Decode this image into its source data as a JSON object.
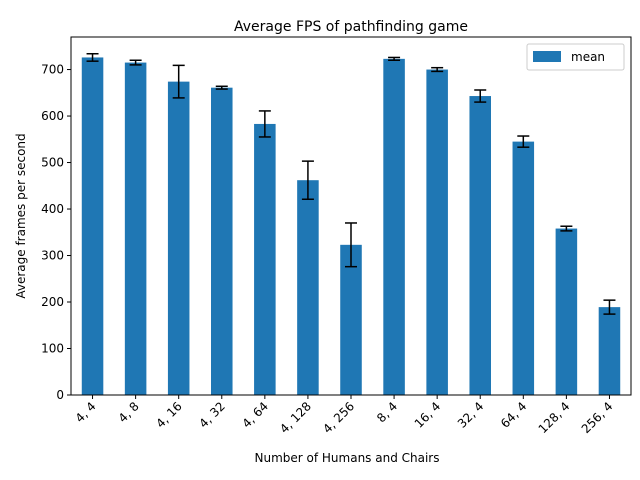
{
  "chart_data": {
    "type": "bar",
    "title": "Average FPS of pathfinding game",
    "xlabel": "Number of Humans and Chairs",
    "ylabel": "Average frames per second",
    "categories": [
      "4, 4",
      "4, 8",
      "4, 16",
      "4, 32",
      "4, 64",
      "4, 128",
      "4, 256",
      "8, 4",
      "16, 4",
      "32, 4",
      "64, 4",
      "128, 4",
      "256, 4"
    ],
    "series": [
      {
        "name": "mean",
        "values": [
          726,
          715,
          674,
          661,
          583,
          462,
          323,
          723,
          700,
          643,
          545,
          358,
          189
        ],
        "errors": [
          8,
          5,
          35,
          3,
          28,
          41,
          47,
          3,
          4,
          13,
          12,
          5,
          15
        ]
      }
    ],
    "ylim": [
      0,
      770
    ],
    "yticks": [
      0,
      100,
      200,
      300,
      400,
      500,
      600,
      700
    ],
    "legend_position": "top-right",
    "grid": false,
    "colors": {
      "bar": "#1f77b4",
      "error": "#000000"
    }
  }
}
